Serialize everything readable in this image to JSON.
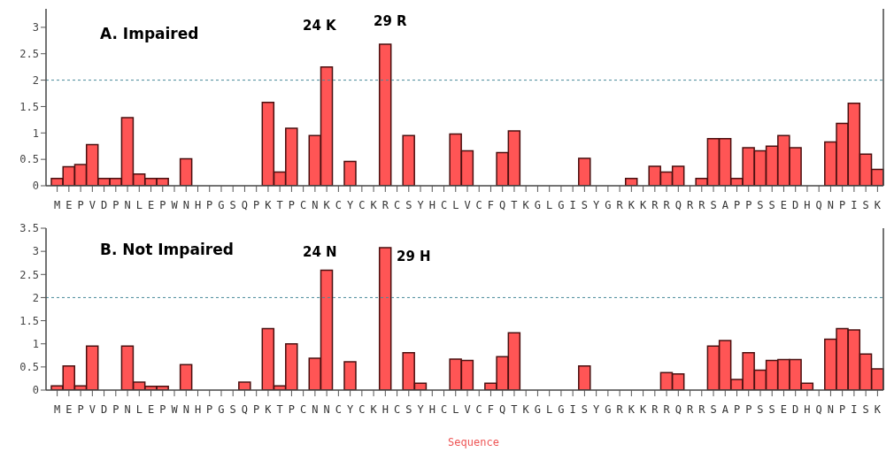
{
  "chart_data": [
    {
      "type": "bar",
      "title": "A. Impaired",
      "categories": [
        "M",
        "E",
        "P",
        "V",
        "D",
        "P",
        "N",
        "L",
        "E",
        "P",
        "W",
        "N",
        "H",
        "P",
        "G",
        "S",
        "Q",
        "P",
        "K",
        "T",
        "P",
        "C",
        "N",
        "K",
        "C",
        "Y",
        "C",
        "K",
        "R",
        "C",
        "S",
        "Y",
        "H",
        "C",
        "L",
        "V",
        "C",
        "F",
        "Q",
        "T",
        "K",
        "G",
        "L",
        "G",
        "I",
        "S",
        "Y",
        "G",
        "R",
        "K",
        "K",
        "R",
        "R",
        "Q",
        "R",
        "R",
        "S",
        "A",
        "P",
        "P",
        "S",
        "S",
        "E",
        "D",
        "H",
        "Q",
        "N",
        "P",
        "I",
        "S",
        "K"
      ],
      "values": [
        0.14,
        0.36,
        0.4,
        0.78,
        0.14,
        0.14,
        1.29,
        0.22,
        0.14,
        0.14,
        0,
        0.51,
        0,
        0,
        0,
        0,
        0,
        0,
        1.58,
        0.26,
        1.09,
        0,
        0.95,
        2.25,
        0,
        0.46,
        0,
        0,
        2.68,
        0,
        0.95,
        0,
        0,
        0,
        0.98,
        0.66,
        0,
        0,
        0.63,
        1.04,
        0,
        0,
        0,
        0,
        0,
        0.52,
        0,
        0,
        0,
        0.14,
        0,
        0.37,
        0.26,
        0.37,
        0,
        0.14,
        0.89,
        0.89,
        0.14,
        0.72,
        0.66,
        0.75,
        0.95,
        0.72,
        0,
        0,
        0.83,
        1.18,
        1.56,
        0.6,
        0.31
      ],
      "color": "#ff5555",
      "ylim": [
        0,
        3.35
      ],
      "yticks": [
        0,
        0.5,
        1,
        1.5,
        2,
        2.5,
        3
      ],
      "ref_lines": [
        {
          "axis": "y",
          "value": 2,
          "color": "#4a8a9a",
          "line_style": "dashed"
        }
      ],
      "annotations": [
        "24 K",
        "29 R"
      ]
    },
    {
      "type": "bar",
      "title": "B. Not Impaired",
      "xlabel": "Sequence",
      "categories": [
        "M",
        "E",
        "P",
        "V",
        "D",
        "P",
        "N",
        "L",
        "E",
        "P",
        "W",
        "N",
        "H",
        "P",
        "G",
        "S",
        "Q",
        "P",
        "K",
        "T",
        "P",
        "C",
        "N",
        "N",
        "C",
        "Y",
        "C",
        "K",
        "H",
        "C",
        "S",
        "Y",
        "H",
        "C",
        "L",
        "V",
        "C",
        "F",
        "Q",
        "T",
        "K",
        "G",
        "L",
        "G",
        "I",
        "S",
        "Y",
        "G",
        "R",
        "K",
        "K",
        "R",
        "R",
        "Q",
        "R",
        "R",
        "S",
        "A",
        "P",
        "P",
        "S",
        "S",
        "E",
        "D",
        "H",
        "Q",
        "N",
        "P",
        "I",
        "S",
        "K"
      ],
      "values": [
        0.09,
        0.52,
        0.09,
        0.95,
        0,
        0,
        0.95,
        0.17,
        0.08,
        0.08,
        0,
        0.55,
        0,
        0,
        0,
        0,
        0.17,
        0,
        1.33,
        0.09,
        1.0,
        0,
        0.69,
        2.59,
        0,
        0.61,
        0,
        0,
        3.08,
        0,
        0.81,
        0.15,
        0,
        0,
        0.67,
        0.64,
        0,
        0.15,
        0.72,
        1.24,
        0,
        0,
        0,
        0,
        0,
        0.52,
        0,
        0,
        0,
        0,
        0,
        0,
        0.38,
        0.35,
        0,
        0,
        0.95,
        1.07,
        0.23,
        0.81,
        0.43,
        0.64,
        0.66,
        0.66,
        0.15,
        0,
        1.1,
        1.33,
        1.3,
        0.78,
        0.46
      ],
      "color": "#ff5555",
      "ylim": [
        0,
        3.5
      ],
      "yticks": [
        0,
        0.5,
        1,
        1.5,
        2,
        2.5,
        3,
        3.5
      ],
      "ref_lines": [
        {
          "axis": "y",
          "value": 2,
          "color": "#4a8a9a",
          "line_style": "dashed"
        }
      ],
      "annotations": [
        "24 N",
        "29 H"
      ]
    }
  ]
}
